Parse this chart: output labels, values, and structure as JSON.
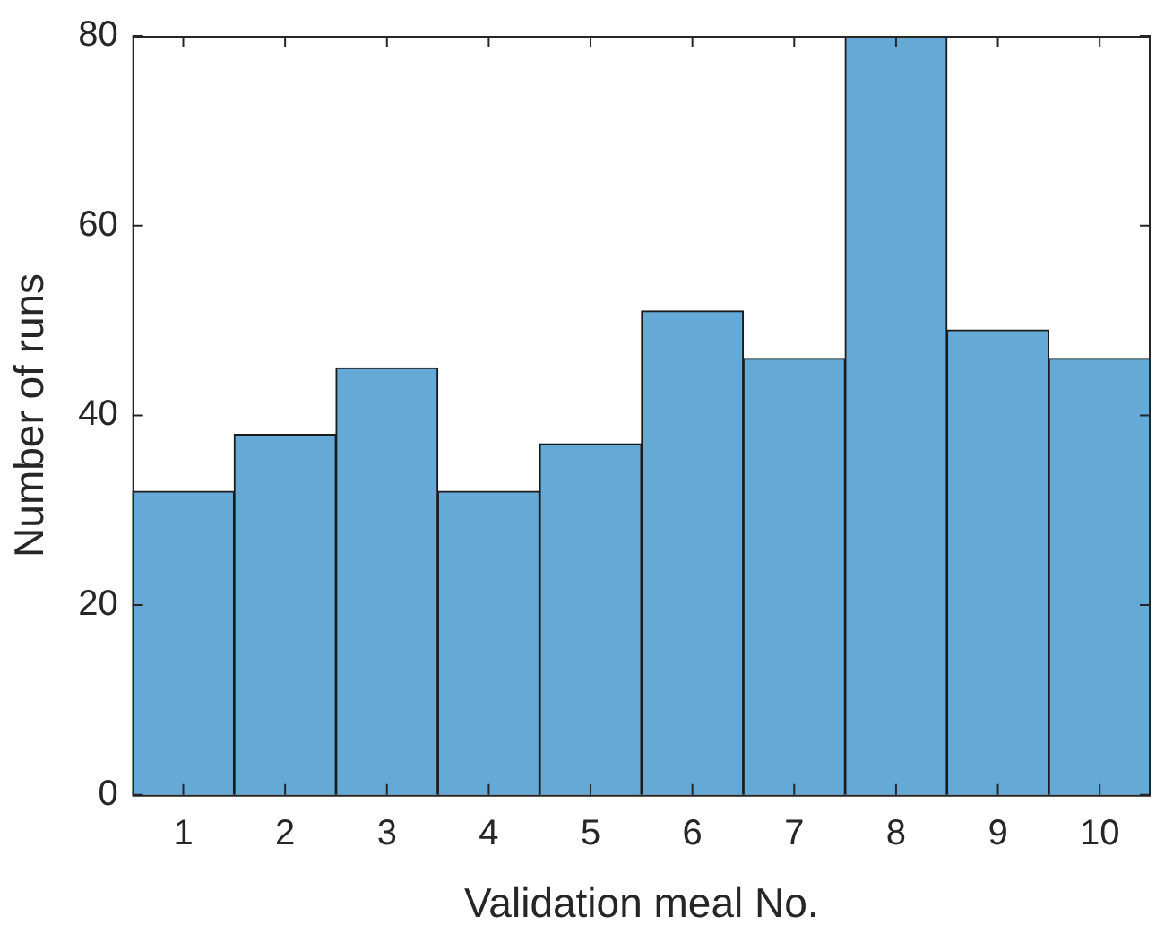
{
  "chart_data": {
    "type": "bar",
    "xlabel": "Validation meal No.",
    "ylabel": "Number of runs",
    "categories": [
      "1",
      "2",
      "3",
      "4",
      "5",
      "6",
      "7",
      "8",
      "9",
      "10"
    ],
    "values": [
      32,
      38,
      45,
      32,
      37,
      51,
      46,
      80,
      49,
      46
    ],
    "color": "#65a9d7",
    "ylim": [
      0,
      80
    ],
    "yticks": [
      0,
      20,
      40,
      60,
      80
    ],
    "grid": false,
    "legend": false
  }
}
